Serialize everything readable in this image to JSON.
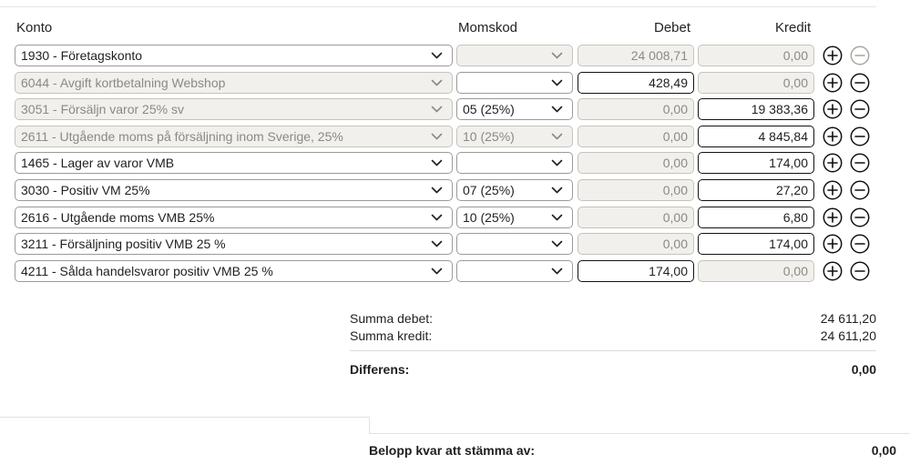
{
  "headers": {
    "konto": "Konto",
    "momskod": "Momskod",
    "debet": "Debet",
    "kredit": "Kredit"
  },
  "rows": [
    {
      "konto": "1930 - Företagskonto",
      "konto_disabled": false,
      "moms": "",
      "moms_disabled": true,
      "debet": "24 008,71",
      "debet_disabled": true,
      "kredit": "0,00",
      "kredit_disabled": true,
      "remove_disabled": true
    },
    {
      "konto": "6044 - Avgift kortbetalning Webshop",
      "konto_disabled": true,
      "moms": "",
      "moms_disabled": false,
      "debet": "428,49",
      "debet_disabled": false,
      "kredit": "0,00",
      "kredit_disabled": true,
      "remove_disabled": false
    },
    {
      "konto": "3051 - Försäljn varor 25% sv",
      "konto_disabled": true,
      "moms": "05 (25%)",
      "moms_disabled": false,
      "debet": "0,00",
      "debet_disabled": true,
      "kredit": "19 383,36",
      "kredit_disabled": false,
      "remove_disabled": false
    },
    {
      "konto": "2611 - Utgående moms på försäljning inom Sverige, 25%",
      "konto_disabled": true,
      "moms": "10 (25%)",
      "moms_disabled": true,
      "debet": "0,00",
      "debet_disabled": true,
      "kredit": "4 845,84",
      "kredit_disabled": false,
      "remove_disabled": false
    },
    {
      "konto": "1465 - Lager av varor VMB",
      "konto_disabled": false,
      "moms": "",
      "moms_disabled": false,
      "debet": "0,00",
      "debet_disabled": true,
      "kredit": "174,00",
      "kredit_disabled": false,
      "remove_disabled": false
    },
    {
      "konto": "3030 - Positiv VM 25%",
      "konto_disabled": false,
      "moms": "07 (25%)",
      "moms_disabled": false,
      "debet": "0,00",
      "debet_disabled": true,
      "kredit": "27,20",
      "kredit_disabled": false,
      "remove_disabled": false
    },
    {
      "konto": "2616 - Utgående moms VMB 25%",
      "konto_disabled": false,
      "moms": "10 (25%)",
      "moms_disabled": false,
      "debet": "0,00",
      "debet_disabled": true,
      "kredit": "6,80",
      "kredit_disabled": false,
      "remove_disabled": false
    },
    {
      "konto": "3211 - Försäljning positiv VMB 25 %",
      "konto_disabled": false,
      "moms": "",
      "moms_disabled": false,
      "debet": "0,00",
      "debet_disabled": true,
      "kredit": "174,00",
      "kredit_disabled": false,
      "remove_disabled": false
    },
    {
      "konto": "4211 - Sålda handelsvaror positiv VMB 25 %",
      "konto_disabled": false,
      "moms": "",
      "moms_disabled": false,
      "debet": "174,00",
      "debet_disabled": false,
      "kredit": "0,00",
      "kredit_disabled": true,
      "remove_disabled": false
    }
  ],
  "summary": {
    "summa_debet_label": "Summa debet:",
    "summa_debet_value": "24 611,20",
    "summa_kredit_label": "Summa kredit:",
    "summa_kredit_value": "24 611,20",
    "differens_label": "Differens:",
    "differens_value": "0,00"
  },
  "footer": {
    "belopp_label": "Belopp kvar att stämma av:",
    "belopp_value": "0,00"
  },
  "icons": {
    "add": "plus-circle-icon",
    "remove": "minus-circle-icon",
    "dropdown": "chevron-down-icon"
  },
  "colors": {
    "disabled_bg": "#f2f0ec",
    "disabled_text": "#8b8984",
    "border": "#111111"
  }
}
